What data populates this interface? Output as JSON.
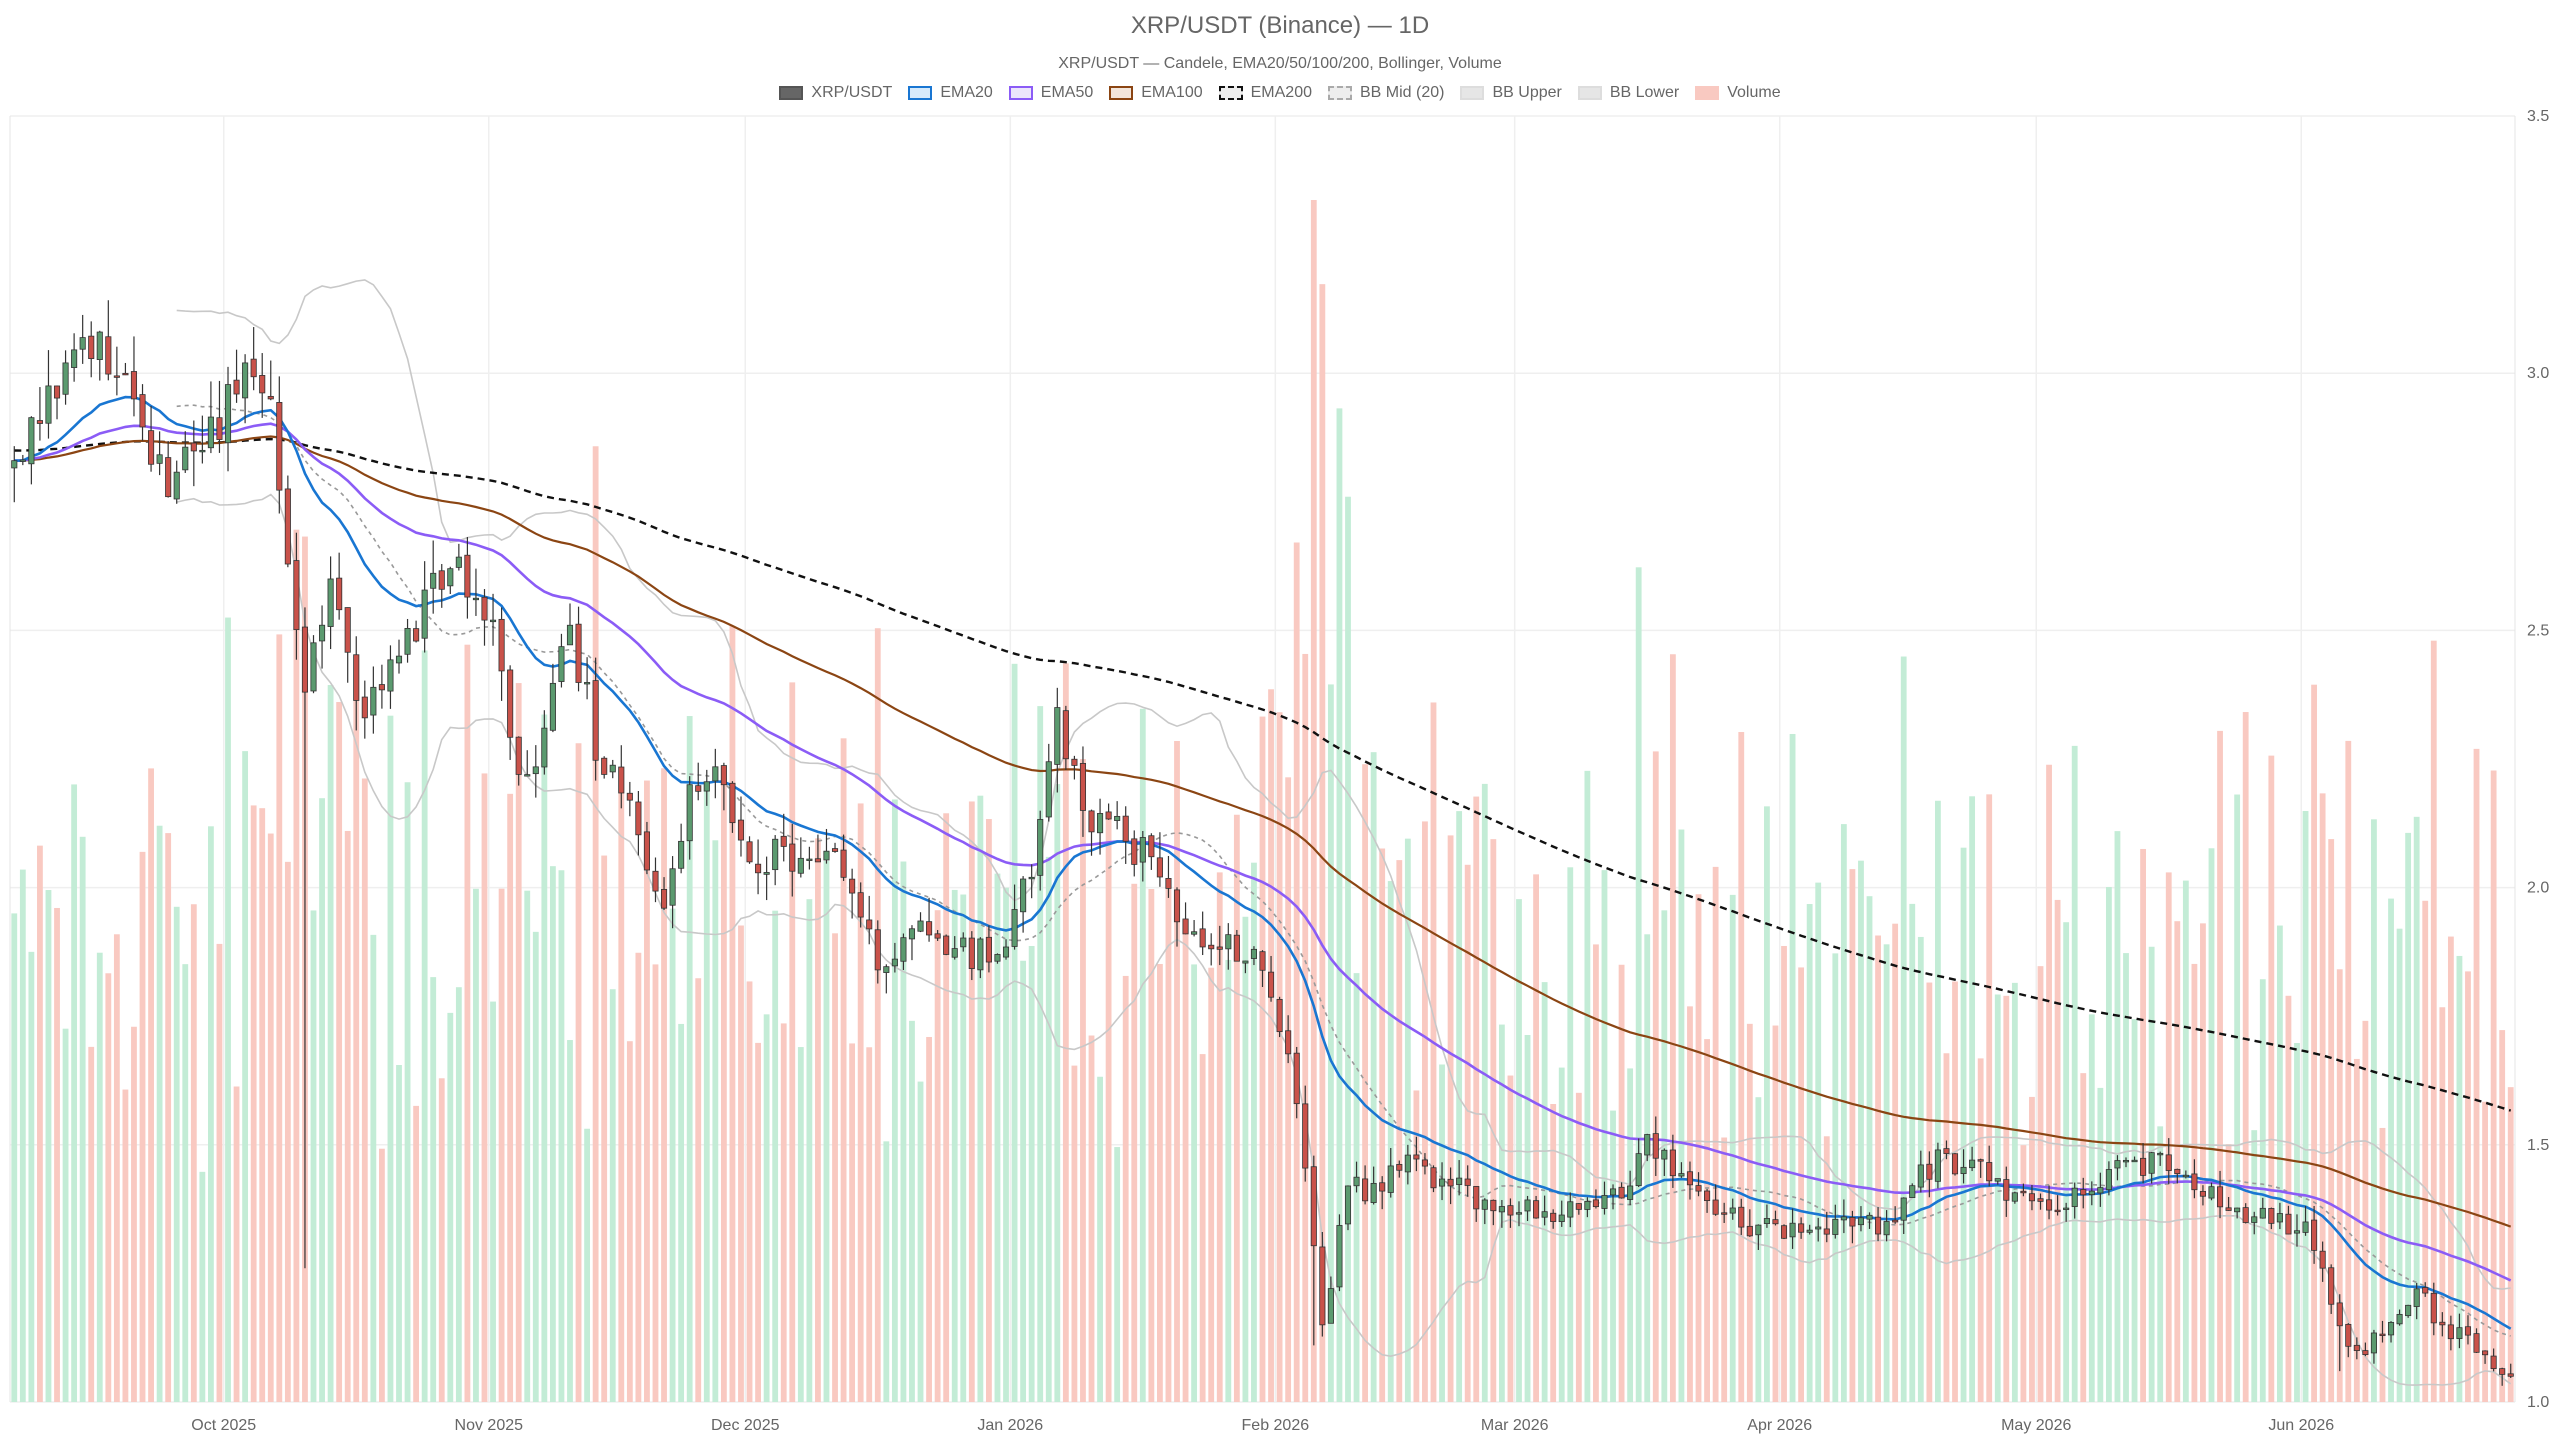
{
  "chart_data": {
    "type": "candlestick",
    "title": "XRP/USDT (Binance) — 1D",
    "subtitle": "XRP/USDT — Candele, EMA20/50/100/200, Bollinger, Volume",
    "legend": [
      {
        "name": "XRP/USDT",
        "fill": "#666666",
        "stroke": "#555555",
        "dash": false
      },
      {
        "name": "EMA20",
        "fill": "#d6eafb",
        "stroke": "#1976d2",
        "dash": false
      },
      {
        "name": "EMA50",
        "fill": "#ece6fb",
        "stroke": "#8b5cf6",
        "dash": false
      },
      {
        "name": "EMA100",
        "fill": "#f3e6dc",
        "stroke": "#8b4513",
        "dash": false
      },
      {
        "name": "EMA200",
        "fill": "#eeeeee",
        "stroke": "#111111",
        "dash": true
      },
      {
        "name": "BB Mid (20)",
        "fill": "#eeeeee",
        "stroke": "#aaaaaa",
        "dash": true
      },
      {
        "name": "BB Upper",
        "fill": "#e6e6e6",
        "stroke": "#dddddd",
        "dash": false
      },
      {
        "name": "BB Lower",
        "fill": "#e6e6e6",
        "stroke": "#dddddd",
        "dash": false
      },
      {
        "name": "Volume",
        "fill": "#f9c9c1",
        "stroke": "#f9c9c1",
        "dash": false
      }
    ],
    "x_axis": {
      "start": "2025-09-06",
      "end": "2026-06-25",
      "ticks": [
        {
          "date": "2025-10-01",
          "label": "Oct 2025"
        },
        {
          "date": "2025-11-01",
          "label": "Nov 2025"
        },
        {
          "date": "2025-12-01",
          "label": "Dec 2025"
        },
        {
          "date": "2026-01-01",
          "label": "Jan 2026"
        },
        {
          "date": "2026-02-01",
          "label": "Feb 2026"
        },
        {
          "date": "2026-03-01",
          "label": "Mar 2026"
        },
        {
          "date": "2026-04-01",
          "label": "Apr 2026"
        },
        {
          "date": "2026-05-01",
          "label": "May 2026"
        },
        {
          "date": "2026-06-01",
          "label": "Jun 2026"
        }
      ]
    },
    "y_axis": {
      "position": "right",
      "ylim": [
        1.0,
        3.5
      ],
      "ticks": [
        {
          "value": 1.0,
          "label": "1.0"
        },
        {
          "value": 1.5,
          "label": "1.5"
        },
        {
          "value": 2.0,
          "label": "2.0"
        },
        {
          "value": 2.5,
          "label": "2.5"
        },
        {
          "value": 3.0,
          "label": "3.0"
        },
        {
          "value": 3.5,
          "label": "3.5"
        }
      ]
    },
    "grid": true,
    "colors": {
      "up_body": "#5b9a6f",
      "down_body": "#c9524a",
      "wick": "#333333",
      "volume_up": "#c3ecd6",
      "volume_down": "#f9c9c1",
      "ema20": "#1976d2",
      "ema50": "#8b5cf6",
      "ema100": "#8b4513",
      "ema200": "#111111",
      "bb_mid": "#999999",
      "bb_band": "#c8c8c8"
    },
    "close_keypoints": [
      [
        "2025-09-06",
        2.83
      ],
      [
        "2025-09-12",
        3.02
      ],
      [
        "2025-09-16",
        3.08
      ],
      [
        "2025-09-20",
        2.95
      ],
      [
        "2025-09-24",
        2.76
      ],
      [
        "2025-09-28",
        2.85
      ],
      [
        "2025-10-03",
        3.02
      ],
      [
        "2025-10-06",
        2.95
      ],
      [
        "2025-10-10",
        2.38
      ],
      [
        "2025-10-13",
        2.6
      ],
      [
        "2025-10-17",
        2.33
      ],
      [
        "2025-10-21",
        2.45
      ],
      [
        "2025-10-27",
        2.62
      ],
      [
        "2025-11-01",
        2.52
      ],
      [
        "2025-11-04",
        2.22
      ],
      [
        "2025-11-07",
        2.31
      ],
      [
        "2025-11-10",
        2.51
      ],
      [
        "2025-11-14",
        2.22
      ],
      [
        "2025-11-17",
        2.17
      ],
      [
        "2025-11-21",
        1.96
      ],
      [
        "2025-11-24",
        2.2
      ],
      [
        "2025-11-28",
        2.2
      ],
      [
        "2025-12-01",
        2.05
      ],
      [
        "2025-12-05",
        2.08
      ],
      [
        "2025-12-09",
        2.05
      ],
      [
        "2025-12-12",
        2.02
      ],
      [
        "2025-12-16",
        1.84
      ],
      [
        "2025-12-20",
        1.92
      ],
      [
        "2025-12-24",
        1.87
      ],
      [
        "2025-12-30",
        1.87
      ],
      [
        "2026-01-03",
        2.02
      ],
      [
        "2026-01-06",
        2.35
      ],
      [
        "2026-01-09",
        2.15
      ],
      [
        "2026-01-14",
        2.09
      ],
      [
        "2026-01-17",
        2.06
      ],
      [
        "2026-01-21",
        1.91
      ],
      [
        "2026-01-25",
        1.88
      ],
      [
        "2026-01-29",
        1.88
      ],
      [
        "2026-02-01",
        1.72
      ],
      [
        "2026-02-03",
        1.58
      ],
      [
        "2026-02-06",
        1.15
      ],
      [
        "2026-02-09",
        1.42
      ],
      [
        "2026-02-13",
        1.41
      ],
      [
        "2026-02-16",
        1.48
      ],
      [
        "2026-02-21",
        1.42
      ],
      [
        "2026-02-27",
        1.38
      ],
      [
        "2026-03-04",
        1.37
      ],
      [
        "2026-03-09",
        1.39
      ],
      [
        "2026-03-14",
        1.42
      ],
      [
        "2026-03-16",
        1.52
      ],
      [
        "2026-03-22",
        1.41
      ],
      [
        "2026-03-27",
        1.34
      ],
      [
        "2026-04-03",
        1.33
      ],
      [
        "2026-04-08",
        1.36
      ],
      [
        "2026-04-14",
        1.35
      ],
      [
        "2026-04-19",
        1.49
      ],
      [
        "2026-04-25",
        1.43
      ],
      [
        "2026-05-01",
        1.39
      ],
      [
        "2026-05-07",
        1.41
      ],
      [
        "2026-05-12",
        1.47
      ],
      [
        "2026-05-16",
        1.45
      ],
      [
        "2026-05-20",
        1.4
      ],
      [
        "2026-05-26",
        1.36
      ],
      [
        "2026-06-01",
        1.35
      ],
      [
        "2026-06-04",
        1.19
      ],
      [
        "2026-06-07",
        1.1
      ],
      [
        "2026-06-10",
        1.13
      ],
      [
        "2026-06-14",
        1.22
      ],
      [
        "2026-06-17",
        1.15
      ],
      [
        "2026-06-20",
        1.13
      ],
      [
        "2026-06-25",
        1.05
      ]
    ]
  }
}
